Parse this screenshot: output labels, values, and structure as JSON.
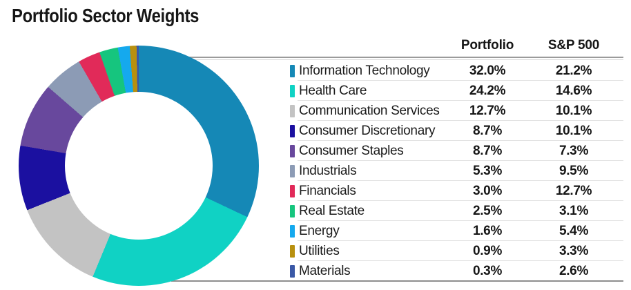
{
  "title": "Portfolio Sector Weights",
  "table": {
    "columns": [
      "Portfolio",
      "S&P 500"
    ]
  },
  "sectors": [
    {
      "name": "Information Technology",
      "color": "#1588b6",
      "portfolio": "32.0%",
      "sp500": "21.2%"
    },
    {
      "name": "Health Care",
      "color": "#10d2c4",
      "portfolio": "24.2%",
      "sp500": "14.6%"
    },
    {
      "name": "Communication Services",
      "color": "#c3c3c3",
      "portfolio": "12.7%",
      "sp500": "10.1%"
    },
    {
      "name": "Consumer Discretionary",
      "color": "#1b10a0",
      "portfolio": "8.7%",
      "sp500": "10.1%"
    },
    {
      "name": "Consumer Staples",
      "color": "#68489d",
      "portfolio": "8.7%",
      "sp500": "7.3%"
    },
    {
      "name": "Industrials",
      "color": "#8c9bb5",
      "portfolio": "5.3%",
      "sp500": "9.5%"
    },
    {
      "name": "Financials",
      "color": "#e12a59",
      "portfolio": "3.0%",
      "sp500": "12.7%"
    },
    {
      "name": "Real Estate",
      "color": "#16c57e",
      "portfolio": "2.5%",
      "sp500": "3.1%"
    },
    {
      "name": "Energy",
      "color": "#15a9ee",
      "portfolio": "1.6%",
      "sp500": "5.4%"
    },
    {
      "name": "Utilities",
      "color": "#b8900f",
      "portfolio": "0.9%",
      "sp500": "3.3%"
    },
    {
      "name": "Materials",
      "color": "#3a58a6",
      "portfolio": "0.3%",
      "sp500": "2.6%"
    }
  ],
  "chart_data": {
    "type": "pie",
    "subtype": "donut",
    "title": "Portfolio Sector Weights",
    "categories": [
      "Information Technology",
      "Health Care",
      "Communication Services",
      "Consumer Discretionary",
      "Consumer Staples",
      "Industrials",
      "Financials",
      "Real Estate",
      "Energy",
      "Utilities",
      "Materials"
    ],
    "series": [
      {
        "name": "Portfolio",
        "values": [
          32.0,
          24.2,
          12.7,
          8.7,
          8.7,
          5.3,
          3.0,
          2.5,
          1.6,
          0.9,
          0.3
        ]
      },
      {
        "name": "S&P 500",
        "values": [
          21.2,
          14.6,
          10.1,
          10.1,
          7.3,
          9.5,
          12.7,
          3.1,
          5.4,
          3.3,
          2.6
        ]
      }
    ],
    "colors": [
      "#1588b6",
      "#10d2c4",
      "#c3c3c3",
      "#1b10a0",
      "#68489d",
      "#8c9bb5",
      "#e12a59",
      "#16c57e",
      "#15a9ee",
      "#b8900f",
      "#3a58a6"
    ],
    "donut_depicts": "Portfolio",
    "start_angle_deg": 0,
    "direction": "clockwise",
    "hole_ratio": 0.61,
    "legend_position": "right-table"
  }
}
